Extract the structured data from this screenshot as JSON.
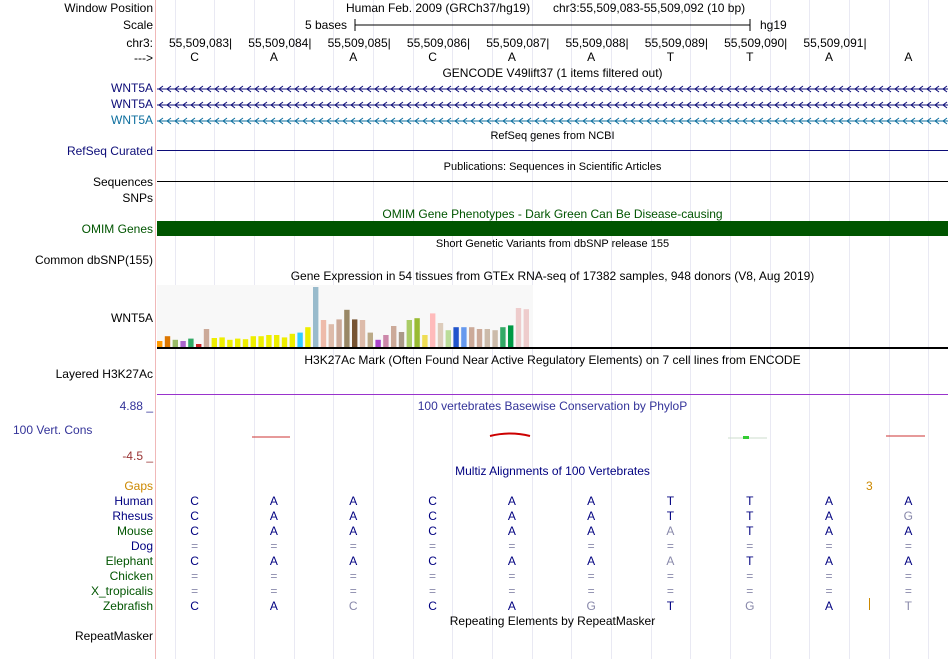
{
  "header": {
    "window_position_label": "Window Position",
    "scale_label": "Scale",
    "chr_label": "chr3:",
    "arrow_label": "--->",
    "assembly": "Human Feb. 2009 (GRCh37/hg19)",
    "position": "chr3:55,509,083-55,509,092 (10 bp)",
    "scale_text": "5 bases",
    "scale_db": "hg19",
    "coords": [
      "55,509,083",
      "55,509,084",
      "55,509,085",
      "55,509,086",
      "55,509,087",
      "55,509,088",
      "55,509,089",
      "55,509,090",
      "55,509,091"
    ],
    "bases": [
      "C",
      "A",
      "A",
      "C",
      "A",
      "A",
      "T",
      "T",
      "A",
      "A"
    ]
  },
  "gencode": {
    "title": "GENCODE V49lift37 (1 items filtered out)",
    "genes": [
      {
        "name": "WNT5A",
        "color": "#0c0c78"
      },
      {
        "name": "WNT5A",
        "color": "#0c0c78"
      },
      {
        "name": "WNT5A",
        "color": "#0c6e9e"
      }
    ]
  },
  "refseq": {
    "title": "RefSeq genes from NCBI",
    "label": "RefSeq Curated"
  },
  "pubs": {
    "title": "Publications: Sequences in Scientific Articles",
    "label": "Sequences"
  },
  "snps_label": "SNPs",
  "omim": {
    "title": "OMIM Gene Phenotypes - Dark Green Can Be Disease-causing",
    "label": "OMIM Genes",
    "color": "#005500"
  },
  "dbsnp": {
    "title": "Short Genetic Variants from dbSNP release 155",
    "label": "Common dbSNP(155)"
  },
  "gtex": {
    "title": "Gene Expression in 54 tissues from GTEx RNA-seq of 17382 samples, 948 donors (V8, Aug 2019)",
    "label": "WNT5A",
    "bars": [
      {
        "v": 0.1,
        "c": "#ff9900"
      },
      {
        "v": 0.18,
        "c": "#dd7700"
      },
      {
        "v": 0.12,
        "c": "#99bb66"
      },
      {
        "v": 0.1,
        "c": "#aa66cc"
      },
      {
        "v": 0.14,
        "c": "#33aa66"
      },
      {
        "v": 0.05,
        "c": "#cc2222"
      },
      {
        "v": 0.3,
        "c": "#ccaa99"
      },
      {
        "v": 0.15,
        "c": "#eeee00"
      },
      {
        "v": 0.16,
        "c": "#eeee00"
      },
      {
        "v": 0.12,
        "c": "#eeee00"
      },
      {
        "v": 0.14,
        "c": "#eeee00"
      },
      {
        "v": 0.13,
        "c": "#eeee00"
      },
      {
        "v": 0.18,
        "c": "#eeee00"
      },
      {
        "v": 0.18,
        "c": "#eeee00"
      },
      {
        "v": 0.2,
        "c": "#eeee00"
      },
      {
        "v": 0.2,
        "c": "#eeee00"
      },
      {
        "v": 0.16,
        "c": "#eeee00"
      },
      {
        "v": 0.22,
        "c": "#eeee00"
      },
      {
        "v": 0.24,
        "c": "#33ccff"
      },
      {
        "v": 0.33,
        "c": "#eeee00"
      },
      {
        "v": 1.0,
        "c": "#99bbcc"
      },
      {
        "v": 0.45,
        "c": "#eebbaa"
      },
      {
        "v": 0.38,
        "c": "#ddbbaa"
      },
      {
        "v": 0.46,
        "c": "#ccaa99"
      },
      {
        "v": 0.62,
        "c": "#998866"
      },
      {
        "v": 0.46,
        "c": "#775533"
      },
      {
        "v": 0.45,
        "c": "#ddbbaa"
      },
      {
        "v": 0.24,
        "c": "#bbaa88"
      },
      {
        "v": 0.12,
        "c": "#aa44cc"
      },
      {
        "v": 0.2,
        "c": "#cc88aa"
      },
      {
        "v": 0.35,
        "c": "#ccaa99"
      },
      {
        "v": 0.25,
        "c": "#aa9988"
      },
      {
        "v": 0.45,
        "c": "#aacc66"
      },
      {
        "v": 0.48,
        "c": "#99bb33"
      },
      {
        "v": 0.2,
        "c": "#eedd55"
      },
      {
        "v": 0.56,
        "c": "#ffbbbb"
      },
      {
        "v": 0.4,
        "c": "#ddccbb"
      },
      {
        "v": 0.28,
        "c": "#bbdd99"
      },
      {
        "v": 0.33,
        "c": "#2255cc"
      },
      {
        "v": 0.33,
        "c": "#6699ee"
      },
      {
        "v": 0.33,
        "c": "#ccaa99"
      },
      {
        "v": 0.3,
        "c": "#ccaa99"
      },
      {
        "v": 0.3,
        "c": "#ccbbaa"
      },
      {
        "v": 0.28,
        "c": "#ccbbaa"
      },
      {
        "v": 0.33,
        "c": "#33aa66"
      },
      {
        "v": 0.36,
        "c": "#009944"
      },
      {
        "v": 0.65,
        "c": "#eecccc"
      },
      {
        "v": 0.63,
        "c": "#eecccc"
      }
    ]
  },
  "h3k27ac": {
    "title": "H3K27Ac Mark (Often Found Near Active Regulatory Elements) on 7 cell lines from ENCODE",
    "label": "Layered H3K27Ac"
  },
  "phylop": {
    "title": "100 vertebrates Basewise Conservation by PhyloP",
    "label": "100 Vert. Cons",
    "ymax": "4.88 _",
    "ymin": "-4.5 _"
  },
  "multiz": {
    "title": "Multiz Alignments of 100 Vertebrates",
    "gaps_label": "Gaps",
    "gaps_value": "3",
    "species": [
      {
        "name": "Human",
        "color": "#000080",
        "seq": [
          "C",
          "A",
          "A",
          "C",
          "A",
          "A",
          "T",
          "T",
          "A",
          "A"
        ]
      },
      {
        "name": "Rhesus",
        "color": "#000080",
        "seq": [
          "C",
          "A",
          "A",
          "C",
          "A",
          "A",
          "T",
          "T",
          "A",
          "G"
        ]
      },
      {
        "name": "Mouse",
        "color": "#005500",
        "seq": [
          "C",
          "A",
          "A",
          "C",
          "A",
          "A",
          "A",
          "T",
          "A",
          "A"
        ]
      },
      {
        "name": "Dog",
        "color": "#000080",
        "seq": [
          "=",
          "=",
          "=",
          "=",
          "=",
          "=",
          "=",
          "=",
          "=",
          "="
        ]
      },
      {
        "name": "Elephant",
        "color": "#005500",
        "seq": [
          "C",
          "A",
          "A",
          "C",
          "A",
          "A",
          "A",
          "T",
          "A",
          "A"
        ]
      },
      {
        "name": "Chicken",
        "color": "#005500",
        "seq": [
          "=",
          "=",
          "=",
          "=",
          "=",
          "=",
          "=",
          "=",
          "=",
          "="
        ]
      },
      {
        "name": "X_tropicalis",
        "color": "#005500",
        "seq": [
          "=",
          "=",
          "=",
          "=",
          "=",
          "=",
          "=",
          "=",
          "=",
          "="
        ]
      },
      {
        "name": "Zebrafish",
        "color": "#005500",
        "seq": [
          "C",
          "A",
          "C",
          "C",
          "A",
          "G",
          "T",
          "G",
          "A",
          "T"
        ]
      }
    ]
  },
  "repeatmasker": {
    "title": "Repeating Elements by RepeatMasker",
    "label": "RepeatMasker"
  }
}
